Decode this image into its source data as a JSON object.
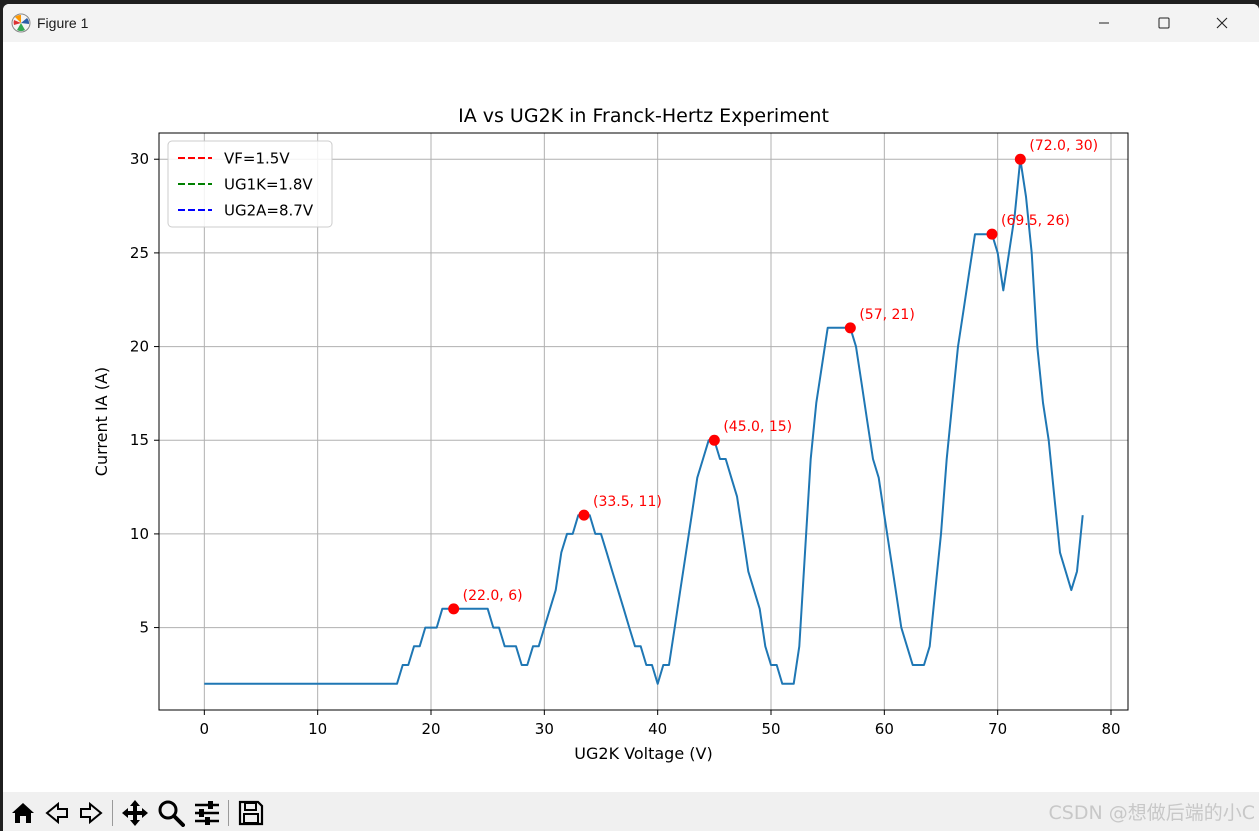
{
  "window": {
    "title": "Figure 1"
  },
  "chart_data": {
    "type": "line",
    "title": "IA vs UG2K in Franck-Hertz Experiment",
    "xlabel": "UG2K Voltage (V)",
    "ylabel": "Current IA (A)",
    "xlim": [
      -4,
      81.5
    ],
    "ylim": [
      0.6,
      31.4
    ],
    "xticks": [
      0,
      10,
      20,
      30,
      40,
      50,
      60,
      70,
      80
    ],
    "yticks": [
      5,
      10,
      15,
      20,
      25,
      30
    ],
    "grid": true,
    "legend_position": "top-left",
    "legend": [
      {
        "label": "VF=1.5V",
        "color": "#ff0000",
        "style": "dashed"
      },
      {
        "label": "UG1K=1.8V",
        "color": "#008000",
        "style": "dashed"
      },
      {
        "label": "UG2A=8.7V",
        "color": "#0000ff",
        "style": "dashed"
      }
    ],
    "series": [
      {
        "color": "#1f77b4",
        "x": [
          0,
          0.5,
          1,
          1.5,
          2,
          2.5,
          3,
          3.5,
          4,
          4.5,
          5,
          5.5,
          6,
          6.5,
          7,
          7.5,
          8,
          8.5,
          9,
          9.5,
          10,
          10.5,
          11,
          11.5,
          12,
          12.5,
          13,
          13.5,
          14,
          14.5,
          15,
          15.5,
          16,
          16.5,
          17,
          17.5,
          18,
          18.5,
          19,
          19.5,
          20,
          20.5,
          21,
          21.5,
          22,
          22.5,
          23,
          23.5,
          24,
          24.5,
          25,
          25.5,
          26,
          26.5,
          27,
          27.5,
          28,
          28.5,
          29,
          29.5,
          30,
          30.5,
          31,
          31.5,
          32,
          32.5,
          33,
          33.5,
          34,
          34.5,
          35,
          35.5,
          36,
          36.5,
          37,
          37.5,
          38,
          38.5,
          39,
          39.5,
          40,
          40.5,
          41,
          41.5,
          42,
          42.5,
          43,
          43.5,
          44,
          44.5,
          45,
          45.5,
          46,
          46.5,
          47,
          47.5,
          48,
          48.5,
          49,
          49.5,
          50,
          50.5,
          51,
          51.5,
          52,
          52.5,
          53,
          53.5,
          54,
          54.5,
          55,
          55.5,
          56,
          56.5,
          57,
          57.5,
          58,
          58.5,
          59,
          59.5,
          60,
          60.5,
          61,
          61.5,
          62,
          62.5,
          63,
          63.5,
          64,
          64.5,
          65,
          65.5,
          66,
          66.5,
          67,
          67.5,
          68,
          68.5,
          69,
          69.5,
          70,
          70.5,
          71,
          71.5,
          72,
          72.5,
          73,
          73.5,
          74,
          74.5,
          75,
          75.5,
          76,
          76.5,
          77,
          77.5
        ],
        "y": [
          2,
          2,
          2,
          2,
          2,
          2,
          2,
          2,
          2,
          2,
          2,
          2,
          2,
          2,
          2,
          2,
          2,
          2,
          2,
          2,
          2,
          2,
          2,
          2,
          2,
          2,
          2,
          2,
          2,
          2,
          2,
          2,
          2,
          2,
          2,
          3,
          3,
          4,
          4,
          5,
          5,
          5,
          6,
          6,
          6,
          6,
          6,
          6,
          6,
          6,
          6,
          5,
          5,
          4,
          4,
          4,
          3,
          3,
          4,
          4,
          5,
          6,
          7,
          9,
          10,
          10,
          11,
          11,
          11,
          10,
          10,
          9,
          8,
          7,
          6,
          5,
          4,
          4,
          3,
          3,
          2,
          3,
          3,
          5,
          7,
          9,
          11,
          13,
          14,
          15,
          15,
          14,
          14,
          13,
          12,
          10,
          8,
          7,
          6,
          4,
          3,
          3,
          2,
          2,
          2,
          4,
          9,
          14,
          17,
          19,
          21,
          21,
          21,
          21,
          21,
          20,
          18,
          16,
          14,
          13,
          11,
          9,
          7,
          5,
          4,
          3,
          3,
          3,
          4,
          7,
          10,
          14,
          17,
          20,
          22,
          24,
          26,
          26,
          26,
          26,
          25,
          23,
          25,
          27,
          30,
          28,
          25,
          20,
          17,
          15,
          12,
          9,
          8,
          7,
          8,
          11
        ]
      }
    ],
    "highlights": [
      {
        "x": 22.0,
        "y": 6,
        "label": "(22.0, 6)"
      },
      {
        "x": 33.5,
        "y": 11,
        "label": "(33.5, 11)"
      },
      {
        "x": 45.0,
        "y": 15,
        "label": "(45.0, 15)"
      },
      {
        "x": 57,
        "y": 21,
        "label": "(57, 21)"
      },
      {
        "x": 69.5,
        "y": 26,
        "label": "(69.5, 26)"
      },
      {
        "x": 72.0,
        "y": 30,
        "label": "(72.0, 30)"
      }
    ],
    "highlight_color": "#ff0000"
  },
  "toolbar": {
    "buttons": [
      "home-icon",
      "back-icon",
      "forward-icon",
      "pan-icon",
      "zoom-icon",
      "configure-subplots-icon",
      "save-icon"
    ]
  },
  "watermark": "CSDN @想做后端的小C"
}
